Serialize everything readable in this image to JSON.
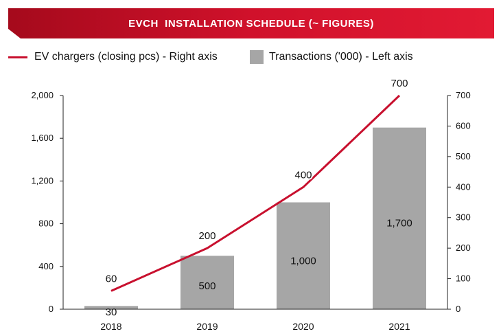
{
  "chart_data": {
    "type": "bar+line",
    "title": "EVCH  INSTALLATION SCHEDULE (~ FIGURES)",
    "categories": [
      "2018",
      "2019",
      "2020",
      "2021"
    ],
    "series": [
      {
        "name": "EV chargers (closing pcs) - Right axis",
        "type": "line",
        "axis": "right",
        "values": [
          60,
          200,
          400,
          700
        ],
        "labels": [
          "60",
          "200",
          "400",
          "700"
        ],
        "color": "#c8102e"
      },
      {
        "name": "Transactions ('000) - Left axis",
        "type": "bar",
        "axis": "left",
        "values": [
          30,
          500,
          1000,
          1700
        ],
        "labels": [
          "30",
          "500",
          "1,000",
          "1,700"
        ],
        "color": "#a6a6a6"
      }
    ],
    "left_axis": {
      "ylim": [
        0,
        2000
      ],
      "ticks": [
        "0",
        "400",
        "800",
        "1,200",
        "1,600",
        "2,000"
      ],
      "tick_values": [
        0,
        400,
        800,
        1200,
        1600,
        2000
      ]
    },
    "right_axis": {
      "ylim": [
        0,
        700
      ],
      "ticks": [
        "0",
        "100",
        "200",
        "300",
        "400",
        "500",
        "600",
        "700"
      ],
      "tick_values": [
        0,
        100,
        200,
        300,
        400,
        500,
        600,
        700
      ]
    },
    "legend_position": "top-left",
    "banner_color": "#c8102e"
  }
}
